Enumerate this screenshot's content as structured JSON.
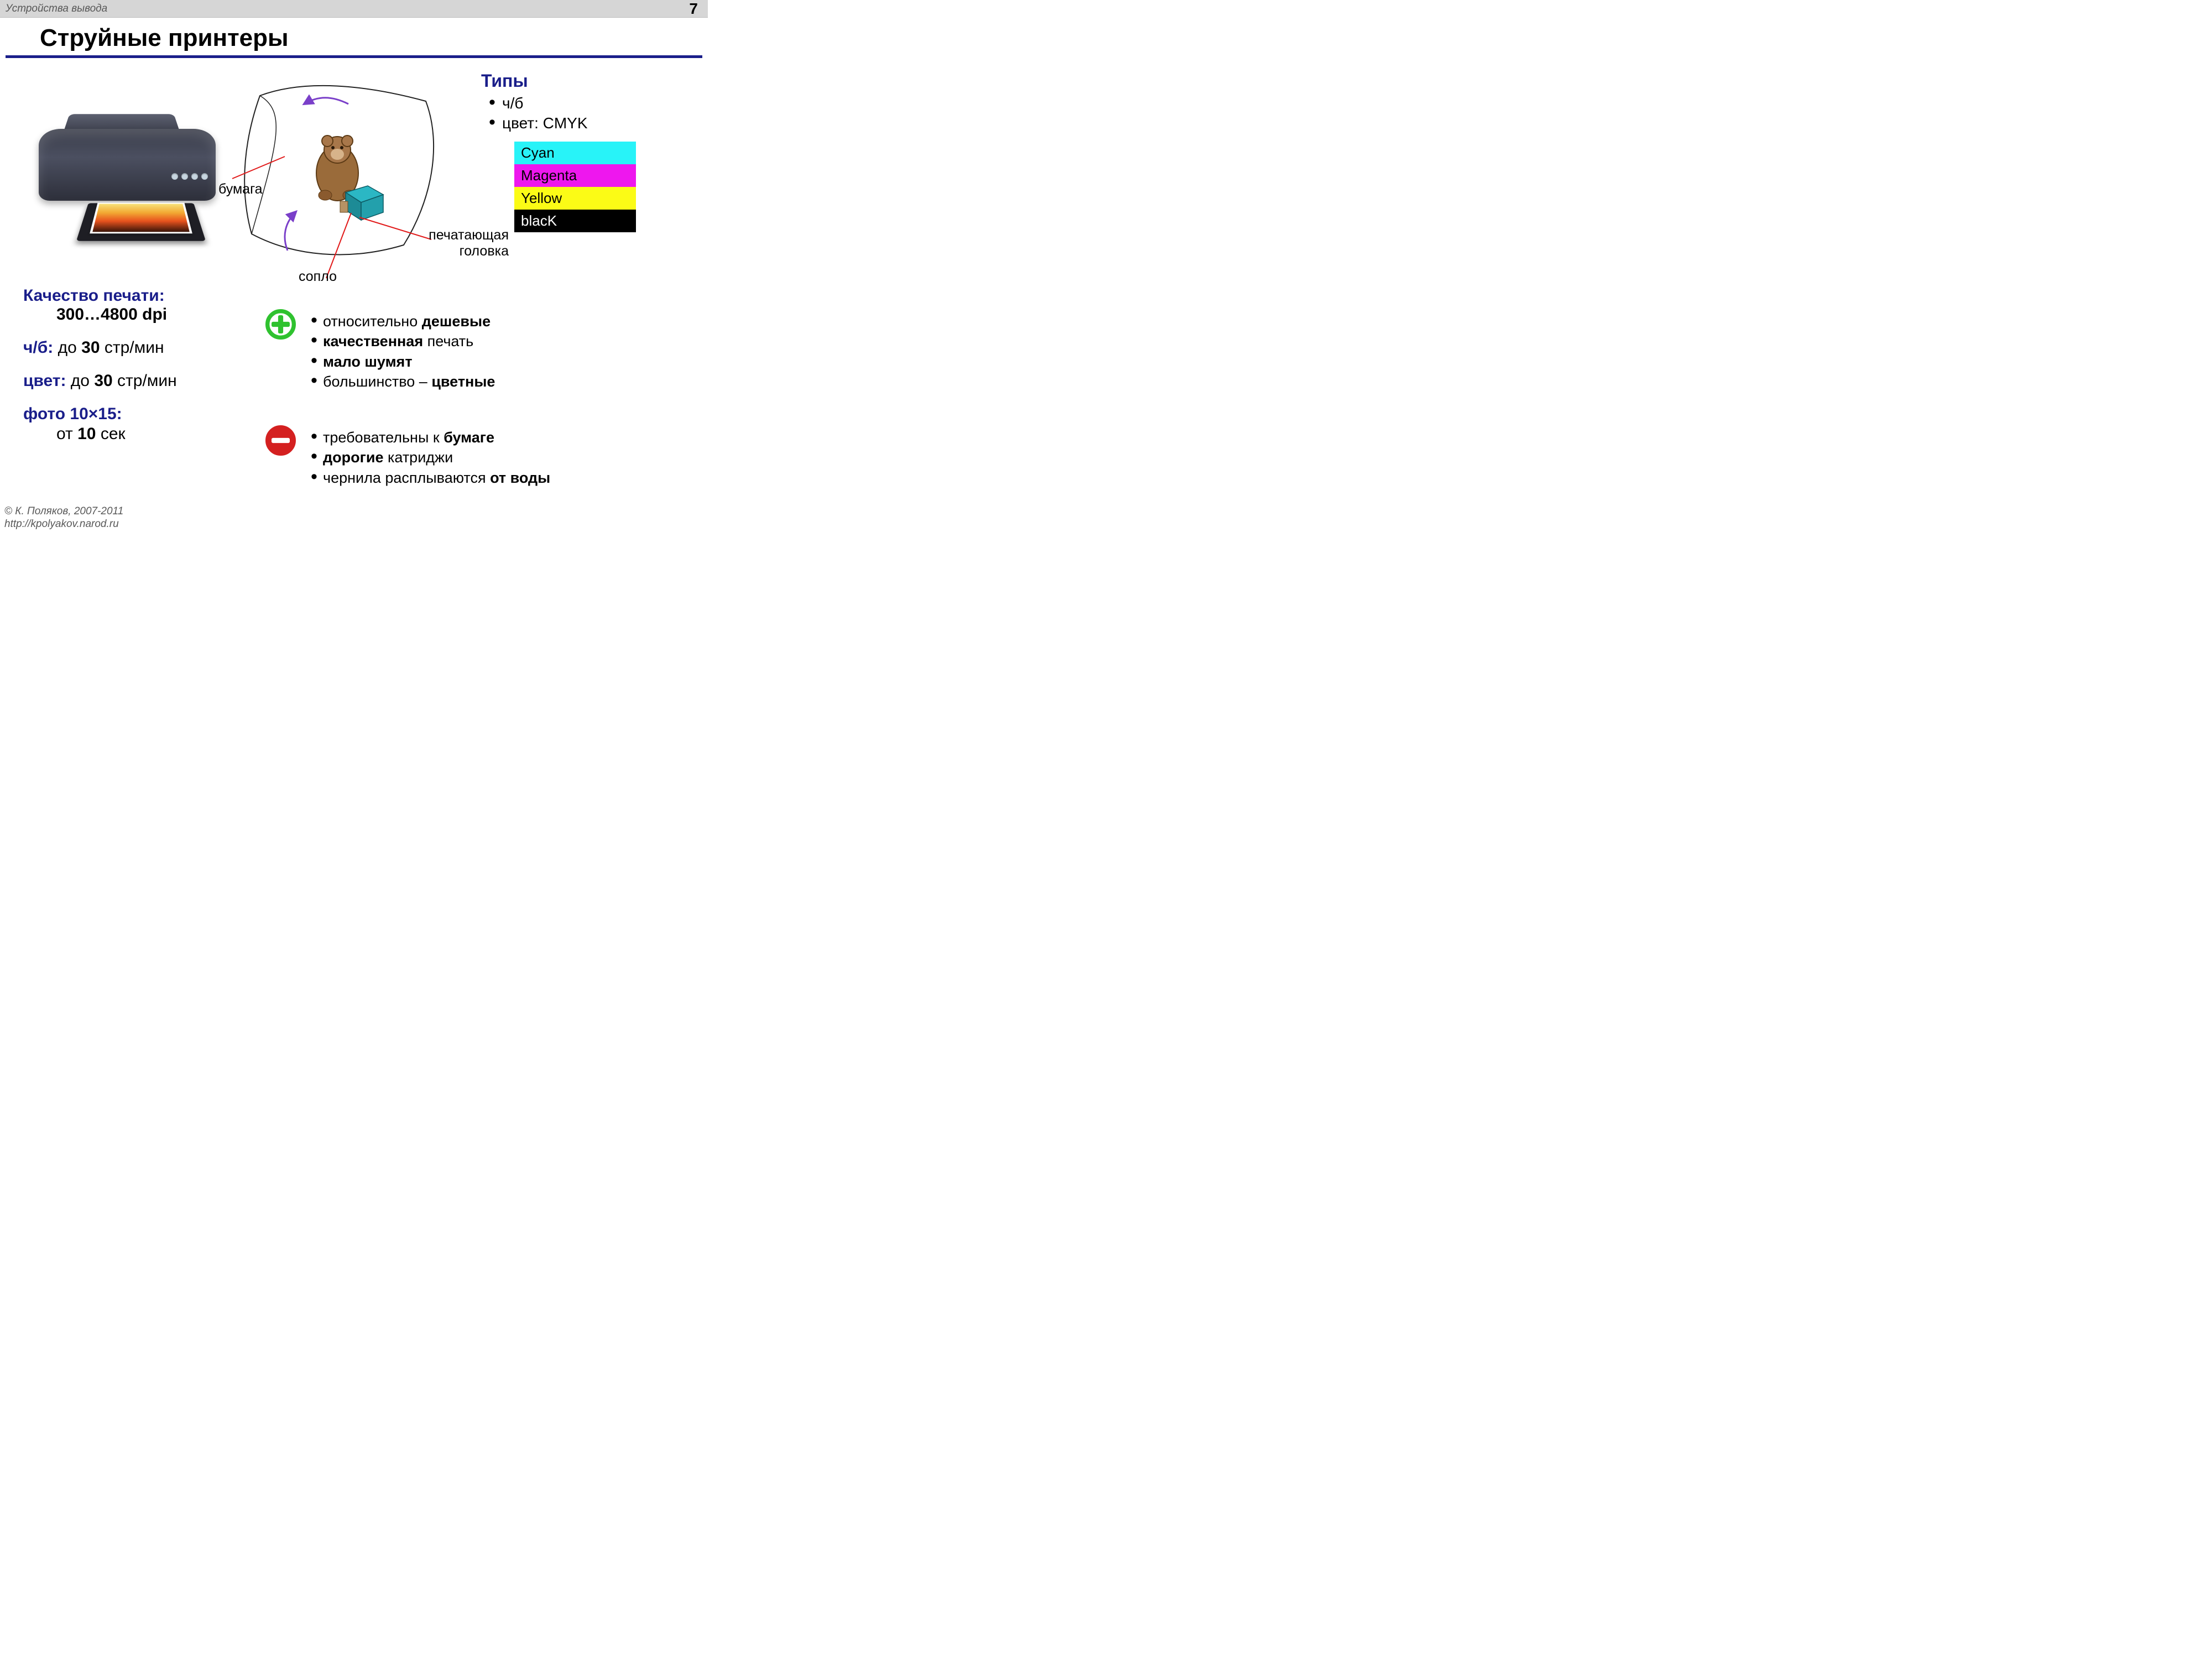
{
  "header": {
    "breadcrumb": "Устройства вывода",
    "page_number": "7"
  },
  "title": "Струйные принтеры",
  "diagram": {
    "paper_label": "бумага",
    "head_label": "печатающая\nголовка",
    "nozzle_label": "сопло",
    "arrow_color": "#7a3fc9",
    "pointer_color": "#e11919",
    "paper_outline": "#222222",
    "head_color": "#2bb7c4",
    "head_side": "#1d8b96"
  },
  "types": {
    "heading": "Типы",
    "items": [
      "ч/б",
      "цвет: CMYK"
    ],
    "cmyk": [
      {
        "label": "Cyan",
        "bg": "#28f3f8",
        "fg": "#000000"
      },
      {
        "label": "Magenta",
        "bg": "#ee17ee",
        "fg": "#000000"
      },
      {
        "label": "Yellow",
        "bg": "#fbfb16",
        "fg": "#000000"
      },
      {
        "label": "blacK",
        "bg": "#000000",
        "fg": "#ffffff"
      }
    ]
  },
  "specs": {
    "quality_label": "Качество печати:",
    "quality_value": "300…4800 dpi",
    "bw_label": "ч/б:",
    "bw_pre": " до ",
    "bw_bold": "30",
    "bw_post": " стр/мин",
    "color_label": "цвет:",
    "color_pre": " до ",
    "color_bold": "30",
    "color_post": " стр/мин",
    "photo_label": "фото 10×15:",
    "photo_pre": "от ",
    "photo_bold": "10",
    "photo_post": " сек"
  },
  "pros": {
    "icon_color": "#2fc22f",
    "items": [
      {
        "pre": "относительно ",
        "bold": "дешевые",
        "post": ""
      },
      {
        "pre": "",
        "bold": "качественная",
        "post": " печать"
      },
      {
        "pre": "",
        "bold": "мало шумят",
        "post": ""
      },
      {
        "pre": "большинство – ",
        "bold": "цветные",
        "post": ""
      }
    ]
  },
  "cons": {
    "icon_color": "#d42020",
    "items": [
      {
        "pre": "требовательны к ",
        "bold": "бумаге",
        "post": ""
      },
      {
        "pre": "",
        "bold": "дорогие",
        "post": " катриджи"
      },
      {
        "pre": "чернила расплываются ",
        "bold": "от воды",
        "post": ""
      }
    ]
  },
  "footer": {
    "copyright": "© К. Поляков, 2007-2011",
    "url": "http://kpolyakov.narod.ru"
  }
}
